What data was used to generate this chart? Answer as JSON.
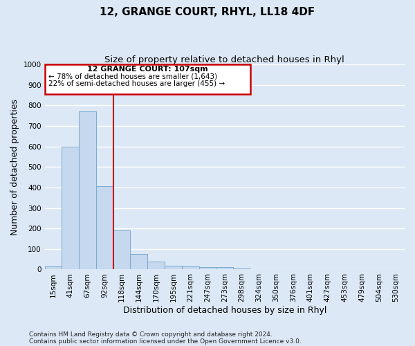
{
  "title": "12, GRANGE COURT, RHYL, LL18 4DF",
  "subtitle": "Size of property relative to detached houses in Rhyl",
  "xlabel": "Distribution of detached houses by size in Rhyl",
  "ylabel": "Number of detached properties",
  "footer_line1": "Contains HM Land Registry data © Crown copyright and database right 2024.",
  "footer_line2": "Contains public sector information licensed under the Open Government Licence v3.0.",
  "categories": [
    "15sqm",
    "41sqm",
    "67sqm",
    "92sqm",
    "118sqm",
    "144sqm",
    "170sqm",
    "195sqm",
    "221sqm",
    "247sqm",
    "273sqm",
    "298sqm",
    "324sqm",
    "350sqm",
    "376sqm",
    "401sqm",
    "427sqm",
    "453sqm",
    "479sqm",
    "504sqm",
    "530sqm"
  ],
  "values": [
    15,
    600,
    770,
    405,
    190,
    77,
    38,
    18,
    15,
    10,
    12,
    5,
    0,
    0,
    0,
    0,
    0,
    0,
    0,
    0,
    0
  ],
  "bar_color": "#c5d8ee",
  "bar_edge_color": "#7aaad0",
  "ylim": [
    0,
    1000
  ],
  "yticks": [
    0,
    100,
    200,
    300,
    400,
    500,
    600,
    700,
    800,
    900,
    1000
  ],
  "vline_x_index": 4.0,
  "annotation_text_line1": "12 GRANGE COURT: 107sqm",
  "annotation_text_line2": "← 78% of detached houses are smaller (1,643)",
  "annotation_text_line3": "22% of semi-detached houses are larger (455) →",
  "annotation_box_color": "#cc0000",
  "vline_color": "#cc0000",
  "background_color": "#dce8f5",
  "plot_bg_color": "#dce8f5",
  "grid_color": "#ffffff",
  "title_fontsize": 11,
  "subtitle_fontsize": 9.5,
  "tick_fontsize": 7.5,
  "ylabel_fontsize": 9,
  "xlabel_fontsize": 9,
  "annotation_fontsize": 8,
  "footer_fontsize": 6.5
}
